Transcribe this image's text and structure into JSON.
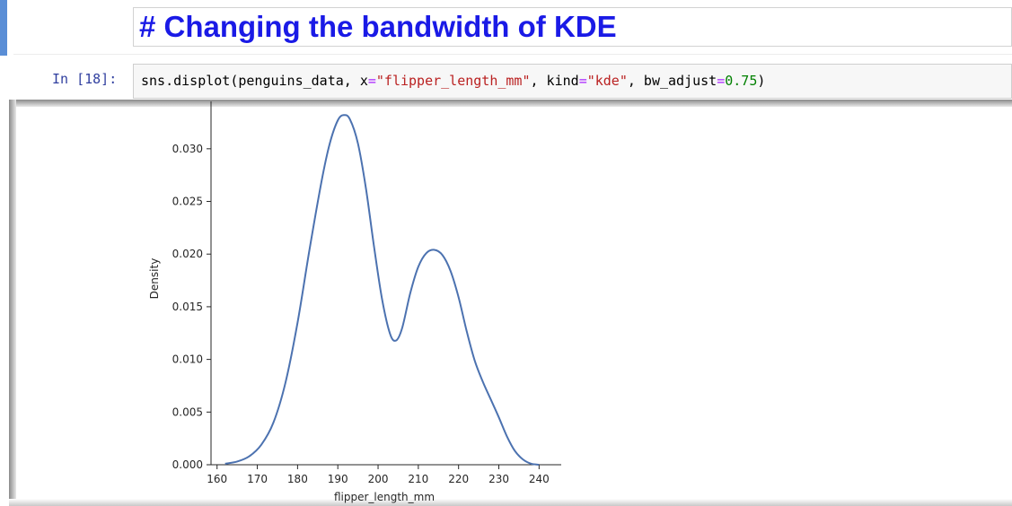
{
  "markdown_cell": {
    "heading": "# Changing the bandwidth of KDE"
  },
  "code_cell": {
    "prompt": "In [18]:",
    "code_parts": [
      {
        "t": "sns.displot(penguins_data, x",
        "c": "plain"
      },
      {
        "t": "=",
        "c": "eq"
      },
      {
        "t": "\"flipper_length_mm\"",
        "c": "str"
      },
      {
        "t": ", kind",
        "c": "plain"
      },
      {
        "t": "=",
        "c": "eq"
      },
      {
        "t": "\"kde\"",
        "c": "str"
      },
      {
        "t": ", bw_adjust",
        "c": "plain"
      },
      {
        "t": "=",
        "c": "eq"
      },
      {
        "t": "0.75",
        "c": "num"
      },
      {
        "t": ")",
        "c": "plain"
      }
    ]
  },
  "colors": {
    "line": "#4c72b0",
    "heading": "#1a1ae6",
    "prompt": "#303f9f"
  },
  "chart_data": {
    "type": "line",
    "xlabel": "flipper_length_mm",
    "ylabel": "Density",
    "xlim": [
      158.5,
      245.5
    ],
    "ylim": [
      0,
      0.0345
    ],
    "x_ticks": [
      160,
      170,
      180,
      190,
      200,
      210,
      220,
      230,
      240
    ],
    "y_ticks": [
      0.0,
      0.005,
      0.01,
      0.015,
      0.02,
      0.025,
      0.03
    ],
    "y_tick_labels": [
      "0.000",
      "0.005",
      "0.010",
      "0.015",
      "0.020",
      "0.025",
      "0.030"
    ],
    "grid": false,
    "series": [
      {
        "x": [
          162,
          165,
          168,
          171,
          174,
          177,
          180,
          183,
          186,
          188,
          190,
          191.5,
          193,
          195,
          197,
          199,
          201,
          203,
          204.5,
          206,
          208,
          210,
          212,
          214,
          216,
          218,
          220,
          222,
          224,
          226,
          228,
          230,
          232,
          234,
          236,
          238,
          240
        ],
        "y": [
          0.0001,
          0.0003,
          0.0008,
          0.0019,
          0.004,
          0.0078,
          0.0135,
          0.0205,
          0.027,
          0.0305,
          0.0327,
          0.0332,
          0.0328,
          0.0305,
          0.0262,
          0.0207,
          0.0157,
          0.0124,
          0.0118,
          0.013,
          0.0163,
          0.0188,
          0.0201,
          0.0204,
          0.0199,
          0.0184,
          0.0159,
          0.0127,
          0.0099,
          0.0079,
          0.0062,
          0.0045,
          0.0027,
          0.0013,
          0.0005,
          0.0001,
          0.0
        ]
      }
    ]
  }
}
